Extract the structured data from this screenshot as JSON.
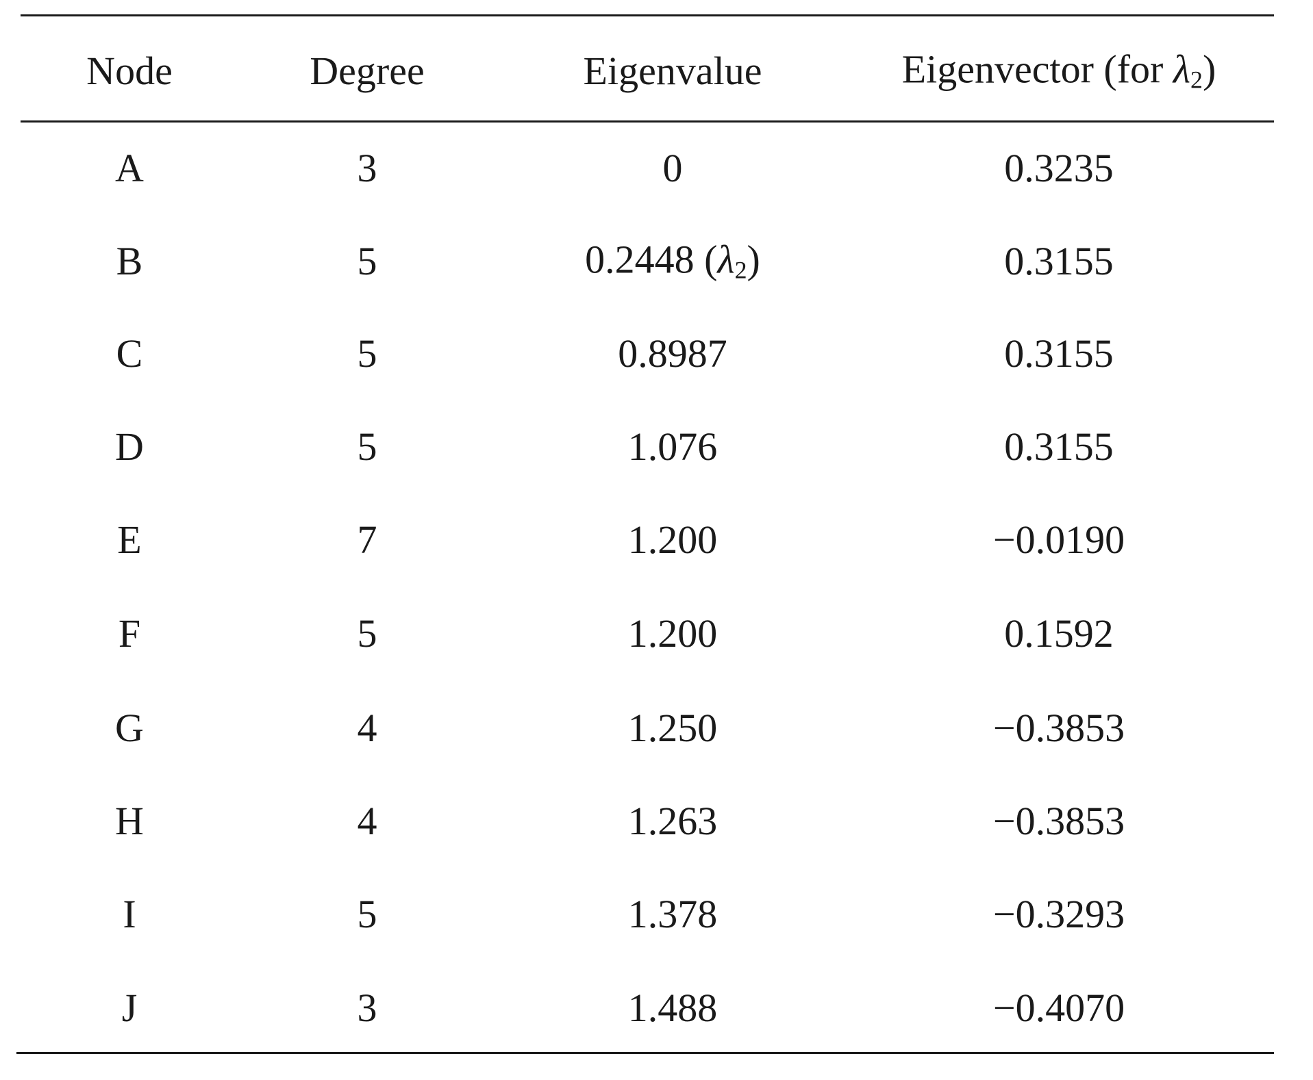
{
  "table": {
    "headers": {
      "node": "Node",
      "degree": "Degree",
      "eigenvalue": "Eigenvalue",
      "eigenvector_prefix": "Eigenvector (for ",
      "eigenvector_lambda": "λ",
      "eigenvector_sub": "2",
      "eigenvector_suffix": ")"
    },
    "lambda_annotation": {
      "open": " (",
      "lambda": "λ",
      "sub": "2",
      "close": ")"
    },
    "rows": [
      {
        "node": "A",
        "degree": "3",
        "eigenvalue": "0",
        "eigenvector": "0.3235"
      },
      {
        "node": "B",
        "degree": "5",
        "eigenvalue": "0.2448",
        "eigenvector": "0.3155"
      },
      {
        "node": "C",
        "degree": "5",
        "eigenvalue": "0.8987",
        "eigenvector": "0.3155"
      },
      {
        "node": "D",
        "degree": "5",
        "eigenvalue": "1.076",
        "eigenvector": "0.3155"
      },
      {
        "node": "E",
        "degree": "7",
        "eigenvalue": "1.200",
        "eigenvector": "−0.0190"
      },
      {
        "node": "F",
        "degree": "5",
        "eigenvalue": "1.200",
        "eigenvector": "0.1592"
      },
      {
        "node": "G",
        "degree": "4",
        "eigenvalue": "1.250",
        "eigenvector": "−0.3853"
      },
      {
        "node": "H",
        "degree": "4",
        "eigenvalue": "1.263",
        "eigenvector": "−0.3853"
      },
      {
        "node": "I",
        "degree": "5",
        "eigenvalue": "1.378",
        "eigenvector": "−0.3293"
      },
      {
        "node": "J",
        "degree": "3",
        "eigenvalue": "1.488",
        "eigenvector": "−0.4070"
      }
    ]
  }
}
